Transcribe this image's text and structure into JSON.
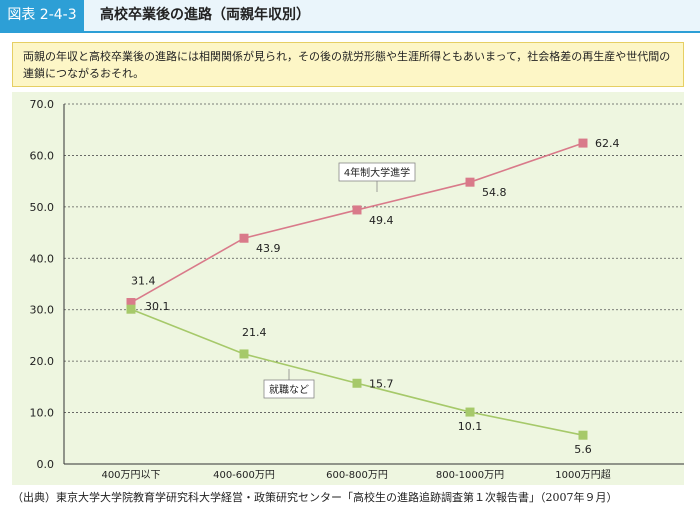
{
  "header": {
    "figure_label": "図表 2-4-3",
    "title": "高校卒業後の進路（両親年収別）"
  },
  "summary": "両親の年収と高校卒業後の進路には相関関係が見られ，その後の就労形態や生涯所得ともあいまって，社会格差の再生産や世代間の連鎖につながるおそれ。",
  "source": "（出典）東京大学大学院教育学研究科大学経営・政策研究センター「高校生の進路追跡調査第１次報告書」（2007年９月）",
  "colors": {
    "header_accent": "#2d9fd6",
    "summary_bg": "#fdf6c6",
    "plot_bg": "#eef6e0",
    "university": "#d97a8a",
    "employment": "#a6c96a"
  },
  "chart_data": {
    "type": "line",
    "categories": [
      "400万円以下",
      "400-600万円",
      "600-800万円",
      "800-1000万円",
      "1000万円超"
    ],
    "ylim": [
      0,
      70
    ],
    "yticks": [
      "0.0",
      "10.0",
      "20.0",
      "30.0",
      "40.0",
      "50.0",
      "60.0",
      "70.0"
    ],
    "grid": true,
    "series": [
      {
        "name": "4年制大学進学",
        "values": [
          31.4,
          43.9,
          49.4,
          54.8,
          62.4
        ],
        "labels": [
          "31.4",
          "43.9",
          "49.4",
          "54.8",
          "62.4"
        ],
        "color": "#d97a8a"
      },
      {
        "name": "就職など",
        "values": [
          30.1,
          21.4,
          15.7,
          10.1,
          5.6
        ],
        "labels": [
          "30.1",
          "21.4",
          "15.7",
          "10.1",
          "5.6"
        ],
        "color": "#a6c96a"
      }
    ]
  }
}
